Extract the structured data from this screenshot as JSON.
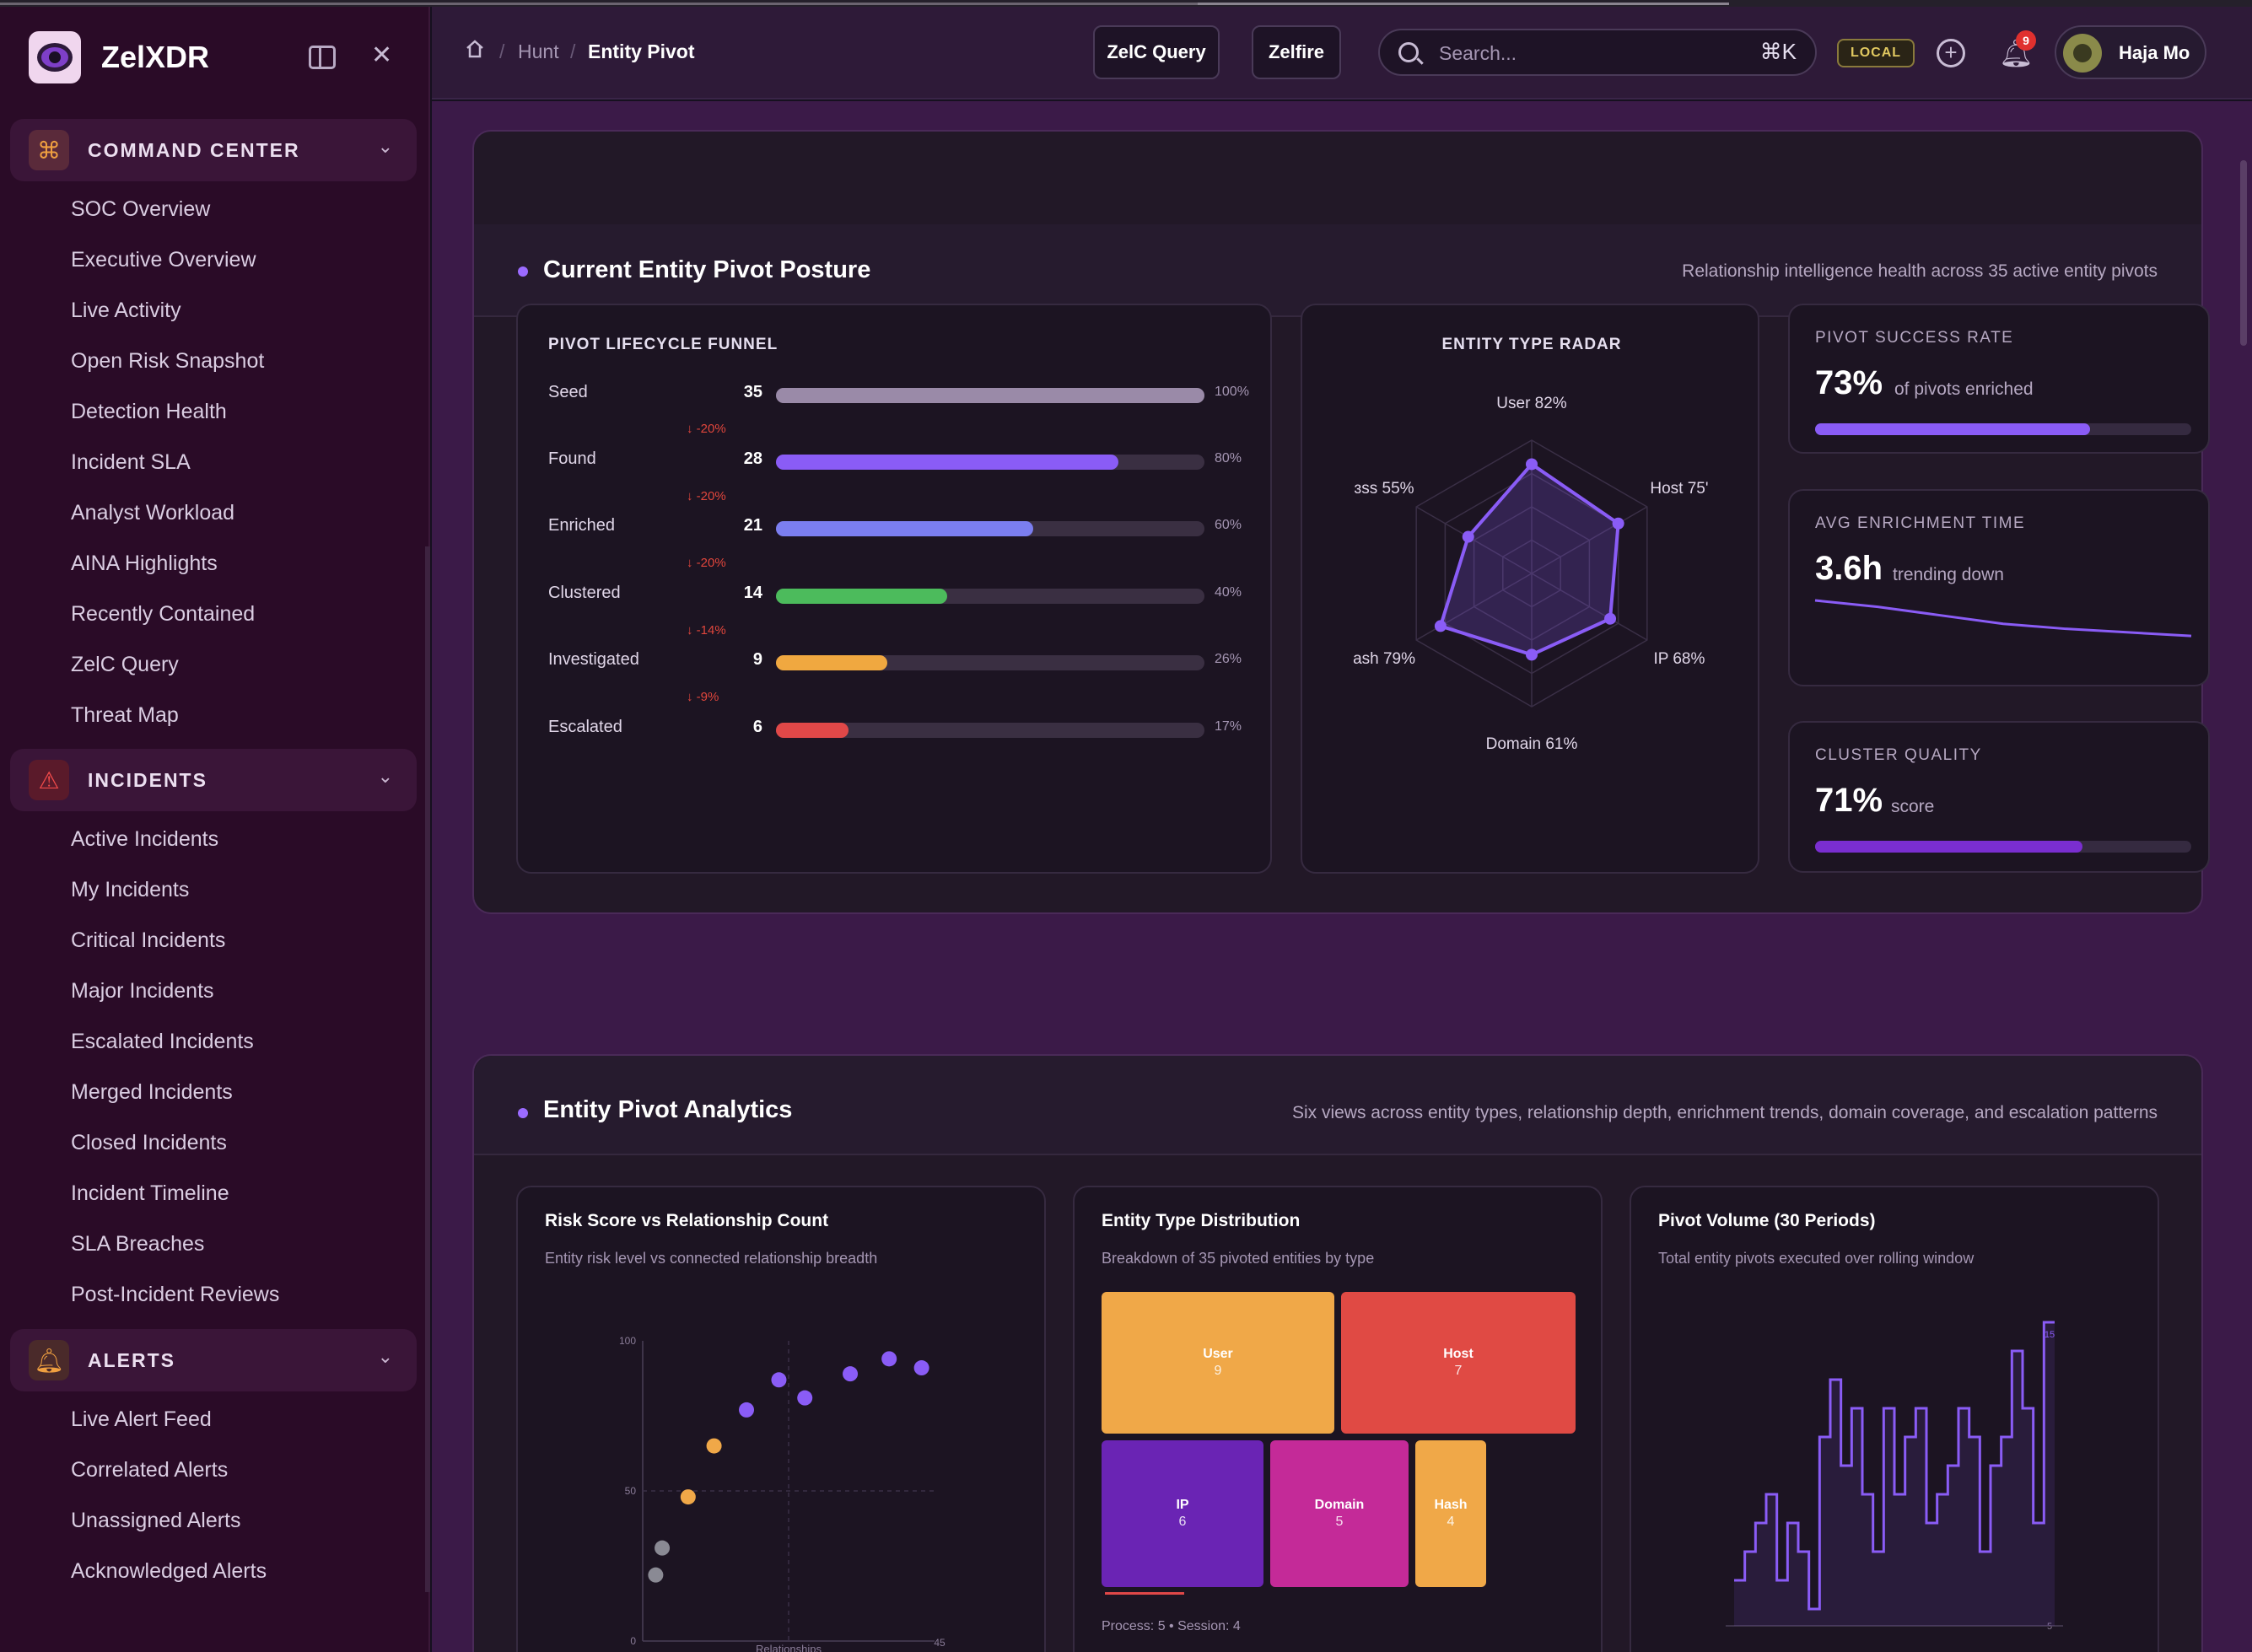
{
  "app": {
    "name": "ZelXDR"
  },
  "sidebar": {
    "groups": [
      {
        "label": "COMMAND CENTER",
        "items": [
          "SOC Overview",
          "Executive Overview",
          "Live Activity",
          "Open Risk Snapshot",
          "Detection Health",
          "Incident SLA",
          "Analyst Workload",
          "AINA Highlights",
          "Recently Contained",
          "ZelC Query",
          "Threat Map"
        ]
      },
      {
        "label": "INCIDENTS",
        "items": [
          "Active Incidents",
          "My Incidents",
          "Critical Incidents",
          "Major Incidents",
          "Escalated Incidents",
          "Merged Incidents",
          "Closed Incidents",
          "Incident Timeline",
          "SLA Breaches",
          "Post-Incident Reviews"
        ]
      },
      {
        "label": "ALERTS",
        "items": [
          "Live Alert Feed",
          "Correlated Alerts",
          "Unassigned Alerts",
          "Acknowledged Alerts"
        ]
      }
    ]
  },
  "topbar": {
    "breadcrumb": [
      "Hunt",
      "Entity Pivot"
    ],
    "zelc_query": "ZelC Query",
    "zelfire": "Zelfire",
    "search_placeholder": "Search...",
    "search_shortcut": "⌘K",
    "env_badge": "LOCAL",
    "notifications": "9",
    "user_name": "Haja Mo"
  },
  "posture": {
    "title": "Current Entity Pivot Posture",
    "subtitle": "Relationship intelligence health across 35 active entity pivots",
    "funnel": {
      "title": "PIVOT LIFECYCLE FUNNEL",
      "stages": [
        {
          "name": "Seed",
          "count": "35",
          "pct": "100%",
          "value": 100,
          "color": "#9a8aa8",
          "drop": "↓ -20%"
        },
        {
          "name": "Found",
          "count": "28",
          "pct": "80%",
          "value": 80,
          "color": "#8a5cf6",
          "drop": "↓ -20%"
        },
        {
          "name": "Enriched",
          "count": "21",
          "pct": "60%",
          "value": 60,
          "color": "#7b7ef0",
          "drop": "↓ -20%"
        },
        {
          "name": "Clustered",
          "count": "14",
          "pct": "40%",
          "value": 40,
          "color": "#4cbb5c",
          "drop": "↓ -14%"
        },
        {
          "name": "Investigated",
          "count": "9",
          "pct": "26%",
          "value": 26,
          "color": "#f0a840",
          "drop": "↓ -9%"
        },
        {
          "name": "Escalated",
          "count": "6",
          "pct": "17%",
          "value": 17,
          "color": "#e04848",
          "drop": ""
        }
      ]
    },
    "radar": {
      "title": "ENTITY TYPE RADAR",
      "axes": [
        {
          "label": "User 82%",
          "value": 82
        },
        {
          "label": "Host 75'",
          "value": 75
        },
        {
          "label": "IP 68%",
          "value": 68
        },
        {
          "label": "Domain 61%",
          "value": 61
        },
        {
          "label": "ash 79%",
          "value": 79
        },
        {
          "label": "ɜss 55%",
          "value": 55
        }
      ]
    },
    "kpis": [
      {
        "label": "PIVOT SUCCESS RATE",
        "value": "73%",
        "sub": "of pivots enriched",
        "progress": 73,
        "color": "#8a5cf6"
      },
      {
        "label": "AVG ENRICHMENT TIME",
        "value": "3.6h",
        "sub": "trending down",
        "trend": [
          9.5,
          8.6,
          7.4,
          6.2,
          5.5,
          5.0,
          4.5
        ]
      },
      {
        "label": "CLUSTER QUALITY",
        "value": "71%",
        "sub": "score",
        "progress": 71,
        "color": "#7a2ed0"
      }
    ]
  },
  "analytics": {
    "title": "Entity Pivot Analytics",
    "subtitle": "Six views across entity types, relationship depth, enrichment trends, domain coverage, and escalation patterns",
    "scatter": {
      "title": "Risk Score vs Relationship Count",
      "subtitle": "Entity risk level vs connected relationship breadth",
      "y_ticks": [
        "100",
        "50",
        "0"
      ],
      "x_end": "45",
      "x_label": "Relationships"
    },
    "treemap": {
      "title": "Entity Type Distribution",
      "subtitle": "Breakdown of 35 pivoted entities by type",
      "footer": "Process: 5 • Session: 4",
      "cells": [
        {
          "name": "User",
          "value": "9",
          "color": "#f0a848"
        },
        {
          "name": "Host",
          "value": "7",
          "color": "#e04a44"
        },
        {
          "name": "IP",
          "value": "6",
          "color": "#6a24b4"
        },
        {
          "name": "Domain",
          "value": "5",
          "color": "#c42a98"
        },
        {
          "name": "Hash",
          "value": "4",
          "color": "#f0a848"
        }
      ]
    },
    "volume": {
      "title": "Pivot Volume (30 Periods)",
      "subtitle": "Total entity pivots executed over rolling window",
      "max_label": "15",
      "min_label": "5"
    }
  },
  "chart_data": [
    {
      "type": "scatter",
      "title": "Risk Score vs Relationship Count",
      "xlabel": "Relationships",
      "ylim": [
        0,
        100
      ],
      "xlim": [
        0,
        45
      ],
      "points": [
        {
          "x": 2,
          "y": 22,
          "color": "#8a8a94"
        },
        {
          "x": 3,
          "y": 31,
          "color": "#8a8a94"
        },
        {
          "x": 7,
          "y": 48,
          "color": "#f0a848"
        },
        {
          "x": 11,
          "y": 65,
          "color": "#f0a848"
        },
        {
          "x": 16,
          "y": 77,
          "color": "#8a5cf6"
        },
        {
          "x": 21,
          "y": 87,
          "color": "#8a5cf6"
        },
        {
          "x": 25,
          "y": 81,
          "color": "#8a5cf6"
        },
        {
          "x": 32,
          "y": 89,
          "color": "#8a5cf6"
        },
        {
          "x": 38,
          "y": 94,
          "color": "#8a5cf6"
        },
        {
          "x": 43,
          "y": 91,
          "color": "#8a5cf6"
        }
      ]
    },
    {
      "type": "line",
      "title": "Pivot Volume (30 Periods)",
      "ylim": [
        5,
        15
      ],
      "values": [
        6,
        7,
        8,
        9,
        6,
        8,
        7,
        5,
        11,
        13,
        10,
        12,
        9,
        7,
        12,
        9,
        11,
        12,
        8,
        9,
        10,
        12,
        11,
        7,
        10,
        11,
        14,
        12,
        8,
        15
      ]
    }
  ]
}
